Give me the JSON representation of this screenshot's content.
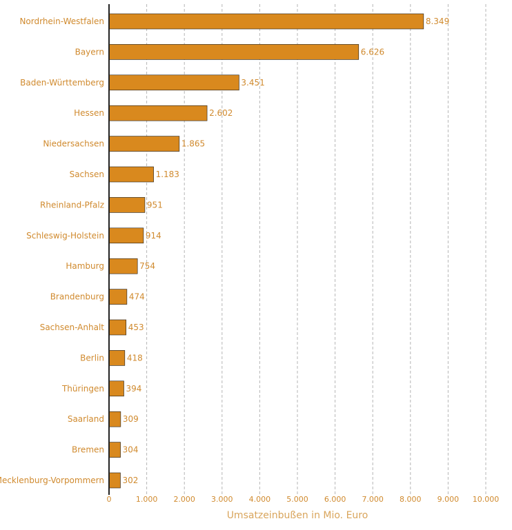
{
  "chart_data": {
    "type": "bar",
    "orientation": "horizontal",
    "categories": [
      "Nordrhein-Westfalen",
      "Bayern",
      "Baden-Württemberg",
      "Hessen",
      "Niedersachsen",
      "Sachsen",
      "Rheinland-Pfalz",
      "Schleswig-Holstein",
      "Hamburg",
      "Brandenburg",
      "Sachsen-Anhalt",
      "Berlin",
      "Thüringen",
      "Saarland",
      "Bremen",
      "Mecklenburg-Vorpommern"
    ],
    "values": [
      8349,
      6626,
      3451,
      2602,
      1865,
      1183,
      951,
      914,
      754,
      474,
      453,
      418,
      394,
      309,
      304,
      302
    ],
    "value_labels": [
      "8.349",
      "6.626",
      "3.451",
      "2.602",
      "1.865",
      "1.183",
      "951",
      "914",
      "754",
      "474",
      "453",
      "418",
      "394",
      "309",
      "304",
      "302"
    ],
    "xlabel": "Umsatzeinbußen in Mio. Euro",
    "ylabel": "",
    "xlim": [
      0,
      10000
    ],
    "ticks": [
      0,
      1000,
      2000,
      3000,
      4000,
      5000,
      6000,
      7000,
      8000,
      9000,
      10000
    ],
    "tick_labels": [
      "0",
      "1.000",
      "2.000",
      "3.000",
      "4.000",
      "5.000",
      "6.000",
      "7.000",
      "8.000",
      "9.000",
      "10.000"
    ],
    "grid": "vertical-dashed",
    "legend": "none",
    "colors": {
      "bar": "#d9891e",
      "bar_edge": "#1a1a1a",
      "text": "#d08a2e",
      "axis_title": "#d9a55c",
      "grid": "#b5b5b5",
      "axis": "#222222"
    }
  }
}
